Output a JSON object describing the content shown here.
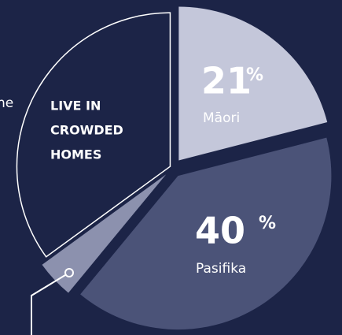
{
  "chart_data": {
    "type": "pie",
    "categories": [
      "Māori",
      "Pasifika",
      null,
      null
    ],
    "values": [
      21,
      40,
      4,
      35
    ],
    "value_suffix": "%",
    "colors": [
      "#c4c7da",
      "#4b5378",
      "#8c91ae",
      "none"
    ],
    "annotations": [
      "LIVE IN",
      "CROWDED",
      "HOMES"
    ],
    "cropped_text": "he"
  }
}
